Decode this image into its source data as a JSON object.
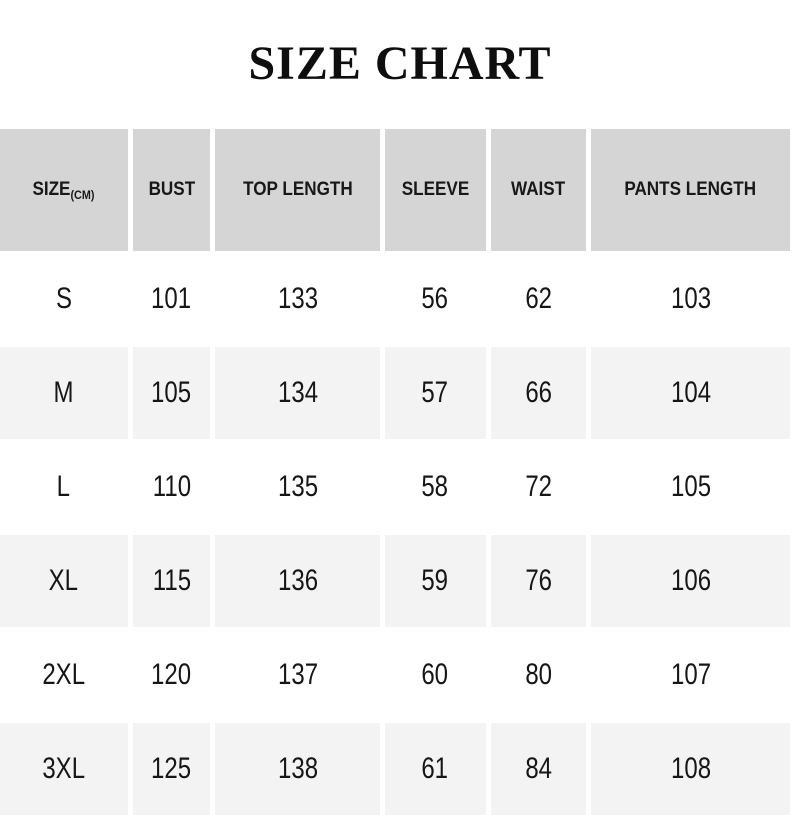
{
  "title": "SIZE CHART",
  "header": {
    "size_label": "SIZE",
    "size_unit": "(CM)"
  },
  "colors": {
    "header_bg": "#d5d5d5",
    "row_alt_bg": "#f3f3f3",
    "row_bg": "#ffffff",
    "text": "#131313",
    "background": "#ffffff"
  },
  "chart_data": {
    "type": "table",
    "title": "SIZE CHART",
    "unit": "CM",
    "columns": [
      "SIZE",
      "BUST",
      "TOP LENGTH",
      "SLEEVE",
      "WAIST",
      "PANTS LENGTH"
    ],
    "rows": [
      [
        "S",
        "101",
        "133",
        "56",
        "62",
        "103"
      ],
      [
        "M",
        "105",
        "134",
        "57",
        "66",
        "104"
      ],
      [
        "L",
        "110",
        "135",
        "58",
        "72",
        "105"
      ],
      [
        "XL",
        "115",
        "136",
        "59",
        "76",
        "106"
      ],
      [
        "2XL",
        "120",
        "137",
        "60",
        "80",
        "107"
      ],
      [
        "3XL",
        "125",
        "138",
        "61",
        "84",
        "108"
      ]
    ]
  }
}
